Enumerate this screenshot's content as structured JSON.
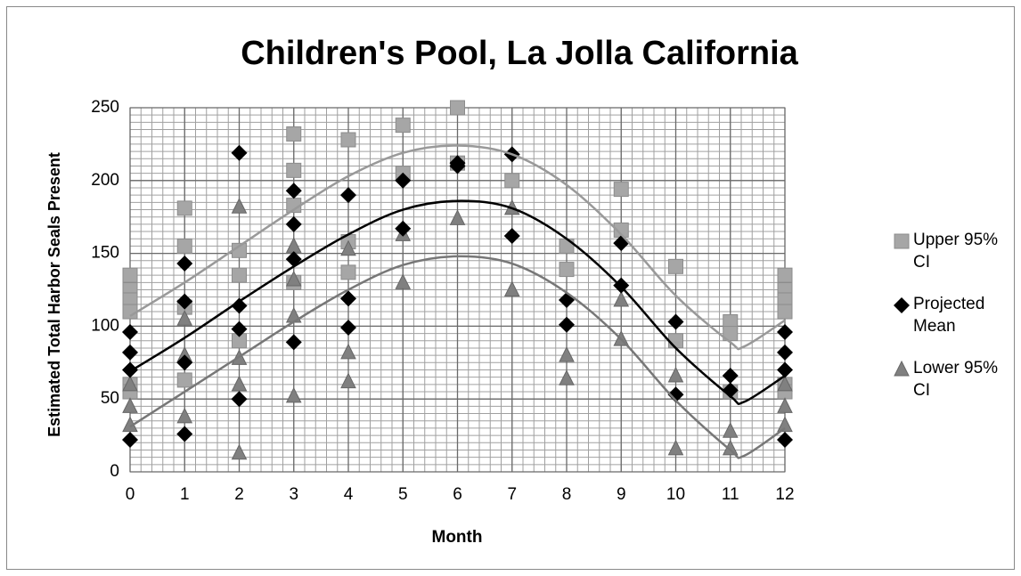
{
  "chart_data": {
    "type": "scatter",
    "title": "Children's Pool, La Jolla California",
    "x_label": "Month",
    "y_label": "Estimated Total Harbor Seals Present",
    "xlim": [
      0,
      12
    ],
    "xticks": [
      0,
      1,
      2,
      3,
      4,
      5,
      6,
      7,
      8,
      9,
      10,
      11,
      12
    ],
    "ylim": [
      0,
      250
    ],
    "yticks": [
      0,
      50,
      100,
      150,
      200,
      250
    ],
    "grid": true,
    "minor_grid": {
      "x": 0.2,
      "y": 5
    },
    "legend": "right",
    "series": [
      {
        "name": "Upper 95% CI",
        "color": "#a6a6a6",
        "marker": "square",
        "x": [
          0,
          0,
          0,
          0,
          0,
          0,
          1,
          1,
          1,
          1,
          2,
          2,
          2,
          3,
          3,
          3,
          3,
          4,
          4,
          4,
          5,
          5,
          6,
          6,
          7,
          8,
          8,
          9,
          9,
          10,
          10,
          11,
          11,
          11,
          12,
          12,
          12,
          12,
          12,
          12
        ],
        "values": [
          135,
          125,
          118,
          110,
          60,
          55,
          181,
          155,
          113,
          63,
          152,
          135,
          90,
          232,
          207,
          183,
          130,
          228,
          158,
          137,
          238,
          205,
          250,
          212,
          200,
          155,
          139,
          194,
          166,
          141,
          90,
          103,
          95,
          55,
          135,
          125,
          118,
          110,
          60,
          55
        ],
        "trend": {
          "color": "#999999",
          "x": [
            0,
            1,
            2,
            3,
            4,
            5,
            6,
            7,
            8,
            9,
            10,
            11,
            11.25,
            12
          ],
          "values": [
            107,
            130,
            155,
            180,
            203,
            219,
            224,
            218,
            197,
            163,
            121,
            89,
            86,
            104
          ]
        }
      },
      {
        "name": "Projected Mean",
        "color": "#000000",
        "marker": "diamond",
        "x": [
          0,
          0,
          0,
          0,
          1,
          1,
          1,
          1,
          2,
          2,
          2,
          2,
          3,
          3,
          3,
          3,
          4,
          4,
          4,
          5,
          5,
          6,
          6,
          7,
          7,
          8,
          8,
          9,
          9,
          10,
          10,
          11,
          11,
          12,
          12,
          12,
          12
        ],
        "values": [
          96,
          82,
          70,
          22,
          143,
          117,
          75,
          26,
          219,
          114,
          98,
          50,
          193,
          170,
          146,
          89,
          190,
          119,
          99,
          200,
          167,
          212,
          210,
          218,
          162,
          118,
          101,
          157,
          128,
          103,
          53,
          66,
          56,
          96,
          82,
          70,
          22
        ],
        "trend": {
          "color": "#000000",
          "x": [
            0,
            1,
            2,
            3,
            4,
            5,
            6,
            7,
            8,
            9,
            10,
            11,
            11.25,
            12
          ],
          "values": [
            69,
            92,
            117,
            141,
            163,
            180,
            186,
            181,
            160,
            127,
            85,
            52,
            48,
            66
          ]
        }
      },
      {
        "name": "Lower 95% CI",
        "color": "#808080",
        "marker": "triangle",
        "x": [
          0,
          0,
          0,
          1,
          1,
          1,
          2,
          2,
          2,
          2,
          3,
          3,
          3,
          3,
          4,
          4,
          4,
          5,
          5,
          6,
          7,
          7,
          8,
          8,
          9,
          9,
          10,
          10,
          11,
          11,
          12,
          12,
          12
        ],
        "values": [
          60,
          45,
          32,
          105,
          80,
          38,
          182,
          78,
          60,
          13,
          155,
          132,
          107,
          52,
          153,
          82,
          62,
          163,
          130,
          174,
          181,
          125,
          80,
          64,
          118,
          91,
          66,
          16,
          28,
          16,
          60,
          45,
          32
        ],
        "trend": {
          "color": "#777777",
          "x": [
            0,
            1,
            2,
            3,
            4,
            5,
            6,
            7,
            8,
            9,
            10,
            11,
            11.25,
            12
          ],
          "values": [
            31,
            55,
            79,
            103,
            125,
            142,
            148,
            143,
            123,
            91,
            49,
            15,
            11,
            30
          ]
        }
      }
    ]
  }
}
